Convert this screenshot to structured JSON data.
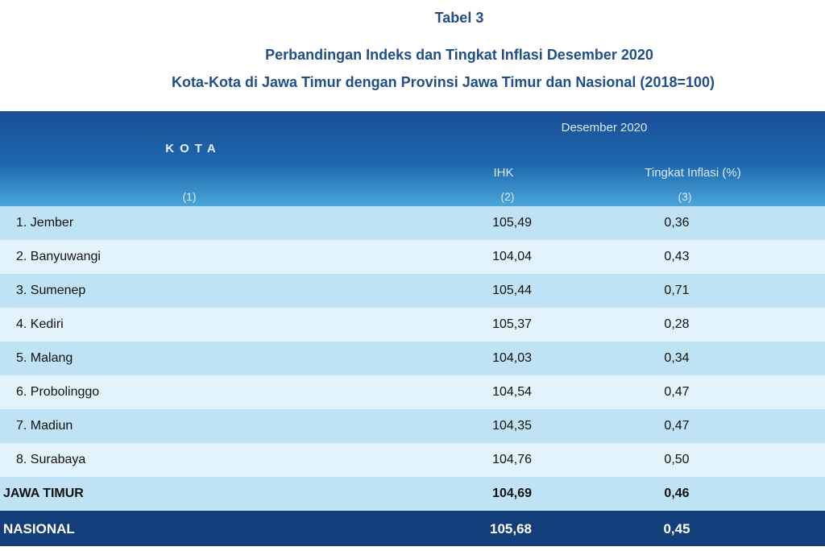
{
  "caption": {
    "table_label": "Tabel 3",
    "title_line1": "Perbandingan Indeks dan Tingkat Inflasi Desember 2020",
    "title_line2": "Kota-Kota di Jawa Timur dengan Provinsi Jawa Timur dan Nasional (2018=100)"
  },
  "header": {
    "kota": "KOTA",
    "period": "Desember 2020",
    "ihk": "IHK",
    "inflation": "Tingkat Inflasi (%)",
    "col_num_1": "(1)",
    "col_num_2": "(2)",
    "col_num_3": "(3)"
  },
  "rows": [
    {
      "name": "1. Jember",
      "ihk": "105,49",
      "inflation": "0,36"
    },
    {
      "name": "2. Banyuwangi",
      "ihk": "104,04",
      "inflation": "0,43"
    },
    {
      "name": "3. Sumenep",
      "ihk": "105,44",
      "inflation": "0,71"
    },
    {
      "name": "4. Kediri",
      "ihk": "105,37",
      "inflation": "0,28"
    },
    {
      "name": "5. Malang",
      "ihk": "104,03",
      "inflation": "0,34"
    },
    {
      "name": "6. Probolinggo",
      "ihk": "104,54",
      "inflation": "0,47"
    },
    {
      "name": "7. Madiun",
      "ihk": "104,35",
      "inflation": "0,47"
    },
    {
      "name": "8. Surabaya",
      "ihk": "104,76",
      "inflation": "0,50"
    }
  ],
  "jatim": {
    "name": "JAWA TIMUR",
    "ihk": "104,69",
    "inflation": "0,46"
  },
  "nasional": {
    "name": "NASIONAL",
    "ihk": "105,68",
    "inflation": "0,45"
  },
  "colors": {
    "title": "#1f4e8c",
    "header_top": "#1a4f97",
    "row_odd": "#bfe3f5",
    "row_even": "#e3f3fb",
    "nasional_bg": "#123f7a"
  }
}
